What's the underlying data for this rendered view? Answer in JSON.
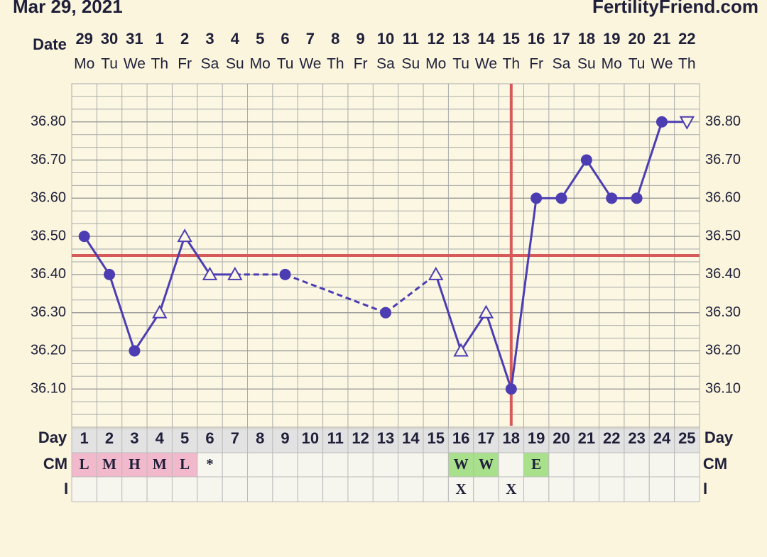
{
  "chart_data": {
    "type": "line",
    "title": "Mar 29, 2021",
    "brand": "FertilityFriend.com",
    "date_label": "Date",
    "day_label": "Day",
    "cm_label": "CM",
    "i_label": "I",
    "x": [
      1,
      2,
      3,
      4,
      5,
      6,
      7,
      8,
      9,
      10,
      11,
      12,
      13,
      14,
      15,
      16,
      17,
      18,
      19,
      20,
      21,
      22,
      23,
      24,
      25
    ],
    "dates": [
      29,
      30,
      31,
      1,
      2,
      3,
      4,
      5,
      6,
      7,
      8,
      9,
      10,
      11,
      12,
      13,
      14,
      15,
      16,
      17,
      18,
      19,
      20,
      21,
      22
    ],
    "weekdays": [
      "Mo",
      "Tu",
      "We",
      "Th",
      "Fr",
      "Sa",
      "Su",
      "Mo",
      "Tu",
      "We",
      "Th",
      "Fr",
      "Sa",
      "Su",
      "Mo",
      "Tu",
      "We",
      "Th",
      "Fr",
      "Sa",
      "Su",
      "Mo",
      "Tu",
      "We",
      "Th"
    ],
    "series": [
      {
        "color": "#4c3db3",
        "values": [
          36.5,
          36.4,
          36.2,
          36.3,
          36.5,
          36.4,
          36.4,
          null,
          36.4,
          null,
          null,
          null,
          36.3,
          null,
          36.4,
          36.2,
          36.3,
          36.1,
          36.6,
          36.6,
          36.7,
          36.6,
          36.6,
          36.8,
          36.8
        ],
        "markers": [
          "dot",
          "dot",
          "dot",
          "triangle",
          "triangle",
          "triangle",
          "triangle",
          null,
          "dot",
          null,
          null,
          null,
          "dot",
          null,
          "triangle",
          "triangle",
          "triangle",
          "dot",
          "dot",
          "dot",
          "dot",
          "dot",
          "dot",
          "dot",
          "triangle-down"
        ]
      }
    ],
    "ylim": [
      36.0,
      36.9
    ],
    "yticks": [
      {
        "value": 36.1,
        "label": "36.10"
      },
      {
        "value": 36.2,
        "label": "36.20"
      },
      {
        "value": 36.3,
        "label": "36.30"
      },
      {
        "value": 36.4,
        "label": "36.40"
      },
      {
        "value": 36.5,
        "label": "36.50"
      },
      {
        "value": 36.6,
        "label": "36.60"
      },
      {
        "value": 36.7,
        "label": "36.70"
      },
      {
        "value": 36.8,
        "label": "36.80"
      }
    ],
    "grid": true,
    "coverline": 36.45,
    "ovulation_day": 18,
    "marker_line_color": "#d65a5a",
    "cm": [
      "L",
      "M",
      "H",
      "M",
      "L",
      "*",
      null,
      null,
      null,
      null,
      null,
      null,
      null,
      null,
      null,
      "W",
      "W",
      null,
      "E",
      null,
      null,
      null,
      null,
      null,
      null
    ],
    "cm_fill": {
      "L": "#f2b8cb",
      "M": "#f2b8cb",
      "H": "#f2b8cb",
      "W": "#a8e08c",
      "E": "#a8e08c"
    },
    "i": [
      null,
      null,
      null,
      null,
      null,
      null,
      null,
      null,
      null,
      null,
      null,
      null,
      null,
      null,
      null,
      "X",
      null,
      "X",
      null,
      null,
      null,
      null,
      null,
      null,
      null
    ]
  }
}
